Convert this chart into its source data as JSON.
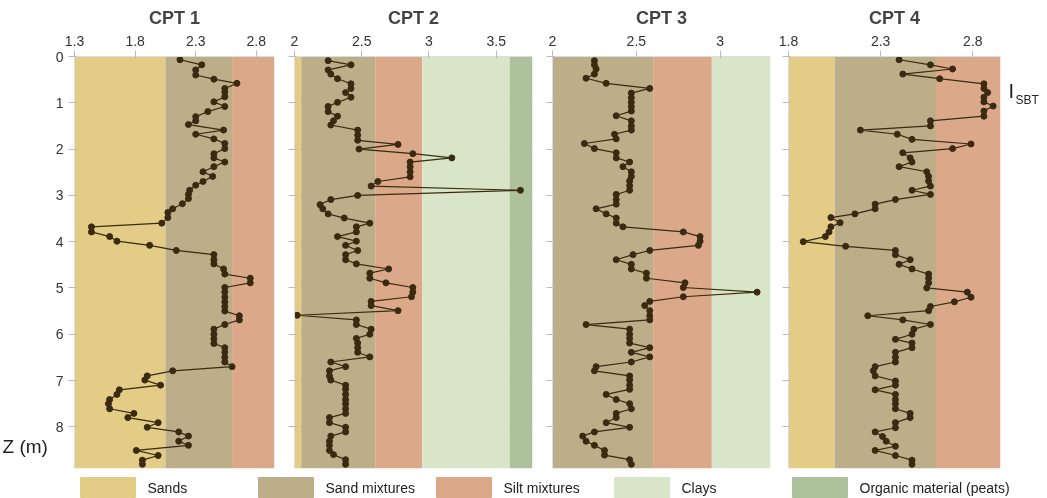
{
  "chart_data": [
    {
      "type": "line",
      "title": "CPT 1",
      "ylabel": "Z (m)",
      "xlim": [
        1.3,
        2.95
      ],
      "ylim": [
        8.9,
        0
      ],
      "xticks": [
        1.3,
        1.8,
        2.3,
        2.8
      ],
      "yticks": [
        0,
        1,
        2,
        3,
        4,
        5,
        6,
        7,
        8
      ],
      "grid": true,
      "marker": "circle",
      "legend": "bottom",
      "bands": [
        {
          "axis": "x",
          "from": 1.3,
          "to": 2.05,
          "label": "Sands",
          "color": "#e2cc86"
        },
        {
          "axis": "x",
          "from": 2.05,
          "to": 2.6,
          "label": "Sand mixtures",
          "color": "#bcae88"
        },
        {
          "axis": "x",
          "from": 2.6,
          "to": 2.95,
          "label": "Silt mixtures",
          "color": "#dba98a"
        }
      ],
      "series": [
        {
          "color": "#3a2a10",
          "x": [
            2.17,
            2.35,
            2.3,
            2.3,
            2.45,
            2.64,
            2.54,
            2.54,
            2.54,
            2.45,
            2.54,
            2.4,
            2.3,
            2.3,
            2.24,
            2.53,
            2.3,
            2.45,
            2.54,
            2.54,
            2.45,
            2.45,
            2.54,
            2.45,
            2.36,
            2.44,
            2.36,
            2.3,
            2.25,
            2.24,
            2.24,
            2.19,
            2.11,
            2.07,
            2.07,
            2.02,
            1.44,
            1.44,
            1.59,
            1.65,
            1.92,
            2.14,
            2.45,
            2.45,
            2.45,
            2.53,
            2.54,
            2.75,
            2.75,
            2.54,
            2.54,
            2.54,
            2.54,
            2.54,
            2.54,
            2.66,
            2.66,
            2.54,
            2.45,
            2.45,
            2.45,
            2.45,
            2.54,
            2.54,
            2.54,
            2.54,
            2.6,
            2.11,
            1.9,
            1.88,
            2.01,
            1.67,
            1.65,
            1.59,
            1.58,
            1.59,
            1.79,
            1.74,
            1.99,
            1.9,
            2.16,
            2.24,
            2.16,
            2.24,
            1.81,
            1.99,
            1.86,
            1.86
          ],
          "values": [
            0.07,
            0.18,
            0.29,
            0.4,
            0.49,
            0.58,
            0.69,
            0.77,
            0.87,
            0.98,
            1.08,
            1.19,
            1.3,
            1.39,
            1.47,
            1.59,
            1.68,
            1.78,
            1.88,
            1.99,
            2.1,
            2.19,
            2.28,
            2.38,
            2.49,
            2.59,
            2.7,
            2.78,
            2.89,
            2.98,
            3.07,
            3.18,
            3.29,
            3.37,
            3.48,
            3.6,
            3.68,
            3.79,
            3.89,
            3.99,
            4.08,
            4.19,
            4.28,
            4.39,
            4.48,
            4.59,
            4.7,
            4.79,
            4.89,
            4.99,
            5.09,
            5.2,
            5.3,
            5.4,
            5.5,
            5.6,
            5.69,
            5.79,
            5.89,
            6.0,
            6.1,
            6.2,
            6.29,
            6.39,
            6.5,
            6.6,
            6.7,
            6.79,
            6.9,
            6.99,
            7.1,
            7.2,
            7.3,
            7.41,
            7.5,
            7.61,
            7.71,
            7.8,
            7.91,
            8.01,
            8.11,
            8.2,
            8.31,
            8.4,
            8.51,
            8.62,
            8.72,
            8.81
          ]
        }
      ]
    },
    {
      "type": "line",
      "title": "CPT 2",
      "xlim": [
        2,
        3.77
      ],
      "ylim": [
        8.9,
        0
      ],
      "xticks": [
        2,
        2.5,
        3,
        3.5
      ],
      "yticks": [
        0,
        1,
        2,
        3,
        4,
        5,
        6,
        7,
        8
      ],
      "tick_labels": "x",
      "grid": true,
      "marker": "circle",
      "legend": "bottom",
      "bands": [
        {
          "axis": "x",
          "from": 2,
          "to": 2.05,
          "color": "#e2cc86"
        },
        {
          "axis": "x",
          "from": 2.05,
          "to": 2.6,
          "color": "#bcae88"
        },
        {
          "axis": "x",
          "from": 2.6,
          "to": 2.95,
          "color": "#dba98a"
        },
        {
          "axis": "x",
          "from": 2.95,
          "to": 3.6,
          "label": "Clays",
          "color": "#d8e5c8"
        },
        {
          "axis": "x",
          "from": 3.6,
          "to": 3.77,
          "label": "Organic material (peats)",
          "color": "#adc19c"
        }
      ],
      "series": [
        {
          "color": "#3a2a10",
          "x": [
            2.25,
            2.42,
            2.25,
            2.27,
            2.32,
            2.42,
            2.42,
            2.38,
            2.42,
            2.32,
            2.25,
            2.25,
            2.32,
            2.29,
            2.27,
            2.47,
            2.47,
            2.47,
            2.77,
            2.48,
            2.88,
            3.17,
            2.86,
            2.86,
            2.86,
            2.86,
            2.62,
            2.57,
            3.68,
            2.47,
            2.27,
            2.19,
            2.21,
            2.25,
            2.37,
            2.56,
            2.46,
            2.46,
            2.32,
            2.46,
            2.38,
            2.47,
            2.38,
            2.38,
            2.46,
            2.7,
            2.56,
            2.56,
            2.68,
            2.88,
            2.88,
            2.87,
            2.57,
            2.57,
            2.77,
            2.02,
            2.46,
            2.46,
            2.57,
            2.56,
            2.46,
            2.47,
            2.47,
            2.47,
            2.56,
            2.27,
            2.38,
            2.26,
            2.26,
            2.27,
            2.38,
            2.38,
            2.38,
            2.38,
            2.38,
            2.38,
            2.38,
            2.26,
            2.26,
            2.38,
            2.38,
            2.27,
            2.26,
            2.26,
            2.26,
            2.29,
            2.38,
            2.38
          ],
          "values": [
            0.09,
            0.18,
            0.29,
            0.38,
            0.48,
            0.59,
            0.69,
            0.78,
            0.88,
            0.99,
            1.08,
            1.19,
            1.29,
            1.39,
            1.48,
            1.59,
            1.7,
            1.81,
            1.9,
            2.0,
            2.1,
            2.19,
            2.28,
            2.38,
            2.49,
            2.6,
            2.7,
            2.8,
            2.89,
            3.0,
            3.09,
            3.2,
            3.29,
            3.4,
            3.49,
            3.6,
            3.68,
            3.79,
            3.89,
            3.99,
            4.08,
            4.19,
            4.28,
            4.39,
            4.48,
            4.59,
            4.68,
            4.79,
            4.89,
            4.99,
            5.09,
            5.19,
            5.29,
            5.38,
            5.49,
            5.59,
            5.69,
            5.79,
            5.89,
            6.0,
            6.09,
            6.19,
            6.29,
            6.39,
            6.49,
            6.6,
            6.7,
            6.79,
            6.9,
            6.99,
            7.1,
            7.19,
            7.3,
            7.41,
            7.5,
            7.61,
            7.71,
            7.8,
            7.91,
            8.01,
            8.11,
            8.2,
            8.31,
            8.4,
            8.51,
            8.6,
            8.71,
            8.81
          ]
        }
      ]
    },
    {
      "type": "line",
      "title": "CPT 3",
      "xlim": [
        2,
        3.3
      ],
      "ylim": [
        8.9,
        0
      ],
      "xticks": [
        2,
        2.5,
        3
      ],
      "yticks": [
        0,
        1,
        2,
        3,
        4,
        5,
        6,
        7,
        8
      ],
      "tick_labels": "x",
      "grid": true,
      "marker": "circle",
      "bands": [
        {
          "axis": "x",
          "from": 2,
          "to": 2.6,
          "color": "#bcae88"
        },
        {
          "axis": "x",
          "from": 2.6,
          "to": 2.95,
          "color": "#dba98a"
        },
        {
          "axis": "x",
          "from": 2.95,
          "to": 3.3,
          "color": "#d8e5c8"
        }
      ],
      "series": [
        {
          "color": "#3a2a10",
          "x": [
            2.25,
            2.25,
            2.26,
            2.25,
            2.2,
            2.32,
            2.58,
            2.47,
            2.47,
            2.47,
            2.47,
            2.47,
            2.38,
            2.47,
            2.47,
            2.47,
            2.37,
            2.38,
            2.19,
            2.25,
            2.38,
            2.38,
            2.46,
            2.42,
            2.47,
            2.47,
            2.46,
            2.46,
            2.46,
            2.38,
            2.38,
            2.38,
            2.26,
            2.32,
            2.38,
            2.38,
            2.42,
            2.78,
            2.88,
            2.88,
            2.87,
            2.58,
            2.48,
            2.38,
            2.47,
            2.47,
            2.56,
            2.56,
            2.79,
            2.78,
            3.22,
            2.78,
            2.58,
            2.55,
            2.58,
            2.58,
            2.58,
            2.2,
            2.46,
            2.46,
            2.46,
            2.46,
            2.58,
            2.47,
            2.58,
            2.47,
            2.26,
            2.25,
            2.46,
            2.46,
            2.46,
            2.46,
            2.32,
            2.38,
            2.46,
            2.47,
            2.38,
            2.38,
            2.32,
            2.46,
            2.25,
            2.18,
            2.2,
            2.25,
            2.31,
            2.31,
            2.46,
            2.47
          ],
          "values": [
            0.09,
            0.18,
            0.27,
            0.38,
            0.47,
            0.58,
            0.69,
            0.79,
            0.89,
            0.99,
            1.08,
            1.18,
            1.28,
            1.39,
            1.5,
            1.59,
            1.68,
            1.78,
            1.88,
            1.99,
            2.08,
            2.19,
            2.28,
            2.38,
            2.49,
            2.59,
            2.69,
            2.79,
            2.89,
            2.98,
            3.09,
            3.19,
            3.29,
            3.4,
            3.49,
            3.6,
            3.68,
            3.79,
            3.89,
            3.99,
            4.08,
            4.19,
            4.28,
            4.39,
            4.49,
            4.59,
            4.68,
            4.79,
            4.89,
            4.99,
            5.09,
            5.19,
            5.29,
            5.38,
            5.49,
            5.6,
            5.69,
            5.79,
            5.89,
            6.0,
            6.09,
            6.19,
            6.29,
            6.39,
            6.49,
            6.6,
            6.7,
            6.79,
            6.9,
            6.99,
            7.1,
            7.19,
            7.3,
            7.41,
            7.5,
            7.61,
            7.71,
            7.8,
            7.91,
            8.01,
            8.11,
            8.2,
            8.31,
            8.4,
            8.51,
            8.61,
            8.71,
            8.81
          ]
        }
      ]
    },
    {
      "type": "line",
      "title": "CPT 4",
      "xlabel": "I$_{SBT}$",
      "xlim": [
        1.8,
        2.95
      ],
      "ylim": [
        8.9,
        0
      ],
      "xticks": [
        1.8,
        2.3,
        2.8
      ],
      "yticks": [
        0,
        1,
        2,
        3,
        4,
        5,
        6,
        7,
        8
      ],
      "tick_labels": "x",
      "grid": true,
      "marker": "circle",
      "bands": [
        {
          "axis": "x",
          "from": 1.8,
          "to": 2.05,
          "color": "#e2cc86"
        },
        {
          "axis": "x",
          "from": 2.05,
          "to": 2.6,
          "color": "#bcae88"
        },
        {
          "axis": "x",
          "from": 2.6,
          "to": 2.95,
          "color": "#dba98a"
        }
      ],
      "series": [
        {
          "color": "#3a2a10",
          "x": [
            2.4,
            2.57,
            2.69,
            2.42,
            2.62,
            2.86,
            2.86,
            2.88,
            2.86,
            2.86,
            2.91,
            2.86,
            2.86,
            2.57,
            2.57,
            2.19,
            2.39,
            2.47,
            2.79,
            2.69,
            2.42,
            2.46,
            2.47,
            2.4,
            2.55,
            2.56,
            2.56,
            2.57,
            2.47,
            2.57,
            2.38,
            2.27,
            2.27,
            2.16,
            2.03,
            2.08,
            2.03,
            2.02,
            2.0,
            1.88,
            2.11,
            2.38,
            2.38,
            2.46,
            2.4,
            2.47,
            2.56,
            2.56,
            2.56,
            2.55,
            2.77,
            2.79,
            2.7,
            2.57,
            2.56,
            2.23,
            2.42,
            2.57,
            2.48,
            2.47,
            2.38,
            2.47,
            2.47,
            2.38,
            2.38,
            2.38,
            2.27,
            2.26,
            2.27,
            2.38,
            2.38,
            2.27,
            2.38,
            2.38,
            2.38,
            2.38,
            2.46,
            2.46,
            2.38,
            2.38,
            2.27,
            2.31,
            2.33,
            2.38,
            2.27,
            2.38,
            2.47,
            2.47
          ],
          "values": [
            0.07,
            0.18,
            0.27,
            0.38,
            0.48,
            0.59,
            0.69,
            0.78,
            0.88,
            0.98,
            1.07,
            1.18,
            1.29,
            1.39,
            1.5,
            1.59,
            1.68,
            1.79,
            1.89,
            1.99,
            2.08,
            2.19,
            2.28,
            2.38,
            2.49,
            2.59,
            2.69,
            2.8,
            2.89,
            2.98,
            3.09,
            3.19,
            3.29,
            3.4,
            3.48,
            3.59,
            3.68,
            3.79,
            3.89,
            4.0,
            4.1,
            4.19,
            4.28,
            4.39,
            4.49,
            4.59,
            4.7,
            4.79,
            4.89,
            5.0,
            5.09,
            5.2,
            5.3,
            5.4,
            5.49,
            5.6,
            5.69,
            5.79,
            5.89,
            6.0,
            6.11,
            6.19,
            6.29,
            6.39,
            6.5,
            6.6,
            6.7,
            6.79,
            6.9,
            7.01,
            7.1,
            7.2,
            7.3,
            7.41,
            7.5,
            7.61,
            7.71,
            7.8,
            7.91,
            8.02,
            8.11,
            8.21,
            8.31,
            8.42,
            8.51,
            8.62,
            8.72,
            8.81
          ]
        }
      ]
    }
  ]
}
